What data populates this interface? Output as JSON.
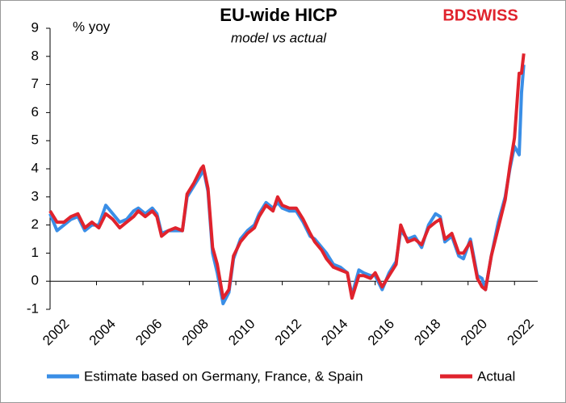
{
  "chart_data": {
    "type": "line",
    "title": "EU-wide HICP",
    "subtitle": "model vs actual",
    "y_label": "% yoy",
    "logo": "BDSWISS",
    "x": [
      2002.0,
      2002.3,
      2002.6,
      2002.9,
      2003.2,
      2003.5,
      2003.8,
      2004.1,
      2004.4,
      2004.7,
      2005.0,
      2005.3,
      2005.6,
      2005.8,
      2006.1,
      2006.4,
      2006.6,
      2006.8,
      2007.1,
      2007.4,
      2007.7,
      2007.9,
      2008.2,
      2008.5,
      2008.6,
      2008.8,
      2009.0,
      2009.2,
      2009.45,
      2009.7,
      2009.9,
      2010.2,
      2010.5,
      2010.8,
      2011.0,
      2011.3,
      2011.6,
      2011.8,
      2012.0,
      2012.3,
      2012.6,
      2012.9,
      2013.2,
      2013.4,
      2013.7,
      2013.9,
      2014.2,
      2014.5,
      2014.8,
      2015.0,
      2015.3,
      2015.5,
      2015.8,
      2016.0,
      2016.3,
      2016.6,
      2016.9,
      2017.1,
      2017.4,
      2017.7,
      2018.0,
      2018.3,
      2018.6,
      2018.8,
      2019.0,
      2019.3,
      2019.6,
      2019.8,
      2020.1,
      2020.4,
      2020.6,
      2020.75,
      2021.0,
      2021.3,
      2021.6,
      2021.8,
      2022.0,
      2022.2,
      2022.3,
      2022.4
    ],
    "series": [
      {
        "name": "Estimate based on Germany, France, & Spain",
        "color": "#3a8ee6",
        "values": [
          2.4,
          1.8,
          2.0,
          2.2,
          2.3,
          1.8,
          2.0,
          2.0,
          2.7,
          2.4,
          2.1,
          2.2,
          2.5,
          2.6,
          2.4,
          2.6,
          2.4,
          1.7,
          1.8,
          1.8,
          1.8,
          3.0,
          3.4,
          3.8,
          4.0,
          3.2,
          1.0,
          0.3,
          -0.8,
          -0.4,
          0.8,
          1.5,
          1.8,
          2.0,
          2.4,
          2.8,
          2.6,
          2.8,
          2.6,
          2.5,
          2.5,
          2.1,
          1.6,
          1.5,
          1.2,
          1.0,
          0.6,
          0.5,
          0.3,
          -0.5,
          0.4,
          0.3,
          0.2,
          0.2,
          -0.3,
          0.3,
          0.7,
          1.8,
          1.5,
          1.6,
          1.2,
          2.0,
          2.4,
          2.3,
          1.4,
          1.6,
          0.9,
          0.8,
          1.5,
          0.2,
          0.1,
          -0.3,
          0.9,
          2.1,
          3.0,
          4.0,
          4.8,
          4.5,
          6.7,
          7.7
        ]
      },
      {
        "name": "Actual",
        "color": "#e0232d",
        "values": [
          2.5,
          2.1,
          2.1,
          2.3,
          2.4,
          1.9,
          2.1,
          1.9,
          2.4,
          2.2,
          1.9,
          2.1,
          2.3,
          2.5,
          2.3,
          2.5,
          2.3,
          1.6,
          1.8,
          1.9,
          1.8,
          3.1,
          3.5,
          4.0,
          4.1,
          3.3,
          1.2,
          0.6,
          -0.6,
          -0.3,
          0.9,
          1.4,
          1.7,
          1.9,
          2.3,
          2.7,
          2.5,
          3.0,
          2.7,
          2.6,
          2.6,
          2.2,
          1.7,
          1.4,
          1.1,
          0.8,
          0.5,
          0.4,
          0.3,
          -0.6,
          0.2,
          0.2,
          0.1,
          0.3,
          -0.2,
          0.2,
          0.6,
          2.0,
          1.4,
          1.5,
          1.3,
          1.9,
          2.1,
          2.2,
          1.5,
          1.7,
          1.0,
          1.0,
          1.4,
          0.1,
          -0.2,
          -0.3,
          0.9,
          1.9,
          2.9,
          4.1,
          5.1,
          7.4,
          7.4,
          8.1
        ]
      }
    ],
    "xlim": [
      2002,
      2023
    ],
    "xticks": [
      2002,
      2004,
      2006,
      2008,
      2010,
      2012,
      2014,
      2016,
      2018,
      2020,
      2022
    ],
    "ylim": [
      -1,
      9
    ],
    "yticks": [
      -1,
      0,
      1,
      2,
      3,
      4,
      5,
      6,
      7,
      8,
      9
    ]
  }
}
